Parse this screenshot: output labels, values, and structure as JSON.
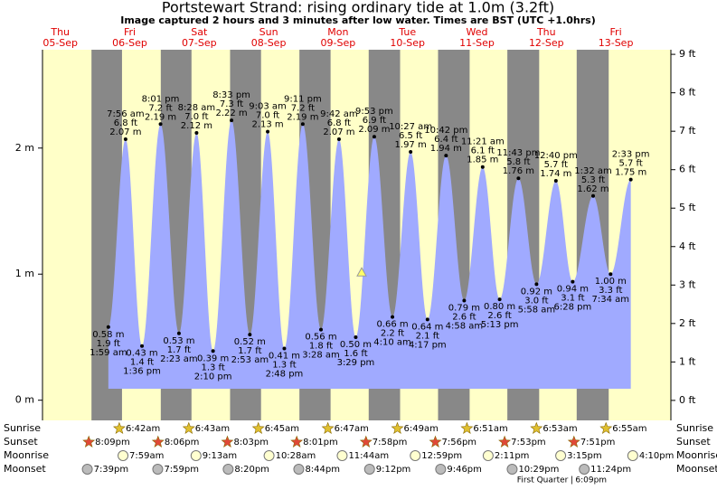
{
  "chart_data": {
    "type": "tide",
    "title": "Portstewart Strand: rising  ordinary tide at 1.0m (3.2ft)",
    "subtitle": "Image captured 2 hours and 3 minutes after low water. Times are BST (UTC +1.0hrs)",
    "ylim": [
      -0.16,
      2.78
    ],
    "yticks": [
      {
        "value": 0,
        "label": "0 m"
      },
      {
        "value": 1,
        "label": "1 m"
      },
      {
        "value": 2,
        "label": "2 m"
      }
    ],
    "y2lim": [
      -0.52,
      9.12
    ],
    "y2ticks": [
      {
        "value": 0,
        "label": "0 ft"
      },
      {
        "value": 1,
        "label": "1 ft"
      },
      {
        "value": 2,
        "label": "2 ft"
      },
      {
        "value": 3,
        "label": "3 ft"
      },
      {
        "value": 4,
        "label": "4 ft"
      },
      {
        "value": 5,
        "label": "5 ft"
      },
      {
        "value": 6,
        "label": "6 ft"
      },
      {
        "value": 7,
        "label": "7 ft"
      },
      {
        "value": 8,
        "label": "8 ft"
      },
      {
        "value": 9,
        "label": "9 ft"
      }
    ],
    "current_level_m": 1.0,
    "row_labels": [
      "Sunrise",
      "Sunset",
      "Moonrise",
      "Moonset"
    ],
    "days": [
      {
        "name": "Thu",
        "date": "05-Sep",
        "sunset": "8:09pm",
        "moonset": "7:39pm",
        "tides": []
      },
      {
        "name": "Fri",
        "date": "06-Sep",
        "sunrise": "6:42am",
        "sunset": "8:06pm",
        "moonrise": "7:59am",
        "moonset": "7:59pm",
        "tides": [
          {
            "time": "1:59 am",
            "m": 0.58,
            "m_label": "0.58 m",
            "ft_label": "1.9 ft"
          },
          {
            "time": "7:56 am",
            "m": 2.07,
            "m_label": "2.07 m",
            "ft_label": "6.8 ft"
          },
          {
            "time": "1:36 pm",
            "m": 0.43,
            "m_label": "0.43 m",
            "ft_label": "1.4 ft"
          },
          {
            "time": "8:01 pm",
            "m": 2.19,
            "m_label": "2.19 m",
            "ft_label": "7.2 ft"
          }
        ]
      },
      {
        "name": "Sat",
        "date": "07-Sep",
        "sunrise": "6:43am",
        "sunset": "8:03pm",
        "moonrise": "9:13am",
        "moonset": "8:20pm",
        "tides": [
          {
            "time": "2:23 am",
            "m": 0.53,
            "m_label": "0.53 m",
            "ft_label": "1.7 ft"
          },
          {
            "time": "8:28 am",
            "m": 2.12,
            "m_label": "2.12 m",
            "ft_label": "7.0 ft"
          },
          {
            "time": "2:10 pm",
            "m": 0.39,
            "m_label": "0.39 m",
            "ft_label": "1.3 ft"
          },
          {
            "time": "8:33 pm",
            "m": 2.22,
            "m_label": "2.22 m",
            "ft_label": "7.3 ft"
          }
        ]
      },
      {
        "name": "Sun",
        "date": "08-Sep",
        "sunrise": "6:45am",
        "sunset": "8:01pm",
        "moonrise": "10:28am",
        "moonset": "8:44pm",
        "tides": [
          {
            "time": "2:53 am",
            "m": 0.52,
            "m_label": "0.52 m",
            "ft_label": "1.7 ft"
          },
          {
            "time": "9:03 am",
            "m": 2.13,
            "m_label": "2.13 m",
            "ft_label": "7.0 ft"
          },
          {
            "time": "2:48 pm",
            "m": 0.41,
            "m_label": "0.41 m",
            "ft_label": "1.3 ft"
          },
          {
            "time": "9:11 pm",
            "m": 2.19,
            "m_label": "2.19 m",
            "ft_label": "7.2 ft"
          }
        ]
      },
      {
        "name": "Mon",
        "date": "09-Sep",
        "sunrise": "6:47am",
        "sunset": "7:58pm",
        "moonrise": "11:44am",
        "moonset": "9:12pm",
        "tides": [
          {
            "time": "3:28 am",
            "m": 0.56,
            "m_label": "0.56 m",
            "ft_label": "1.8 ft"
          },
          {
            "time": "9:42 am",
            "m": 2.07,
            "m_label": "2.07 m",
            "ft_label": "6.8 ft"
          },
          {
            "time": "3:29 pm",
            "m": 0.5,
            "m_label": "0.50 m",
            "ft_label": "1.6 ft"
          },
          {
            "time": "9:53 pm",
            "m": 2.09,
            "m_label": "2.09 m",
            "ft_label": "6.9 ft"
          }
        ]
      },
      {
        "name": "Tue",
        "date": "10-Sep",
        "sunrise": "6:49am",
        "sunset": "7:56pm",
        "moonrise": "12:59pm",
        "moonset": "9:46pm",
        "tides": [
          {
            "time": "4:10 am",
            "m": 0.66,
            "m_label": "0.66 m",
            "ft_label": "2.2 ft"
          },
          {
            "time": "10:27 am",
            "m": 1.97,
            "m_label": "1.97 m",
            "ft_label": "6.5 ft"
          },
          {
            "time": "4:17 pm",
            "m": 0.64,
            "m_label": "0.64 m",
            "ft_label": "2.1 ft"
          },
          {
            "time": "10:42 pm",
            "m": 1.94,
            "m_label": "1.94 m",
            "ft_label": "6.4 ft"
          }
        ]
      },
      {
        "name": "Wed",
        "date": "11-Sep",
        "sunrise": "6:51am",
        "sunset": "7:53pm",
        "moonrise": "2:11pm",
        "moonset": "10:29pm",
        "tides": [
          {
            "time": "4:58 am",
            "m": 0.79,
            "m_label": "0.79 m",
            "ft_label": "2.6 ft"
          },
          {
            "time": "11:21 am",
            "m": 1.85,
            "m_label": "1.85 m",
            "ft_label": "6.1 ft"
          },
          {
            "time": "5:13 pm",
            "m": 0.8,
            "m_label": "0.80 m",
            "ft_label": "2.6 ft"
          },
          {
            "time": "11:43 pm",
            "m": 1.76,
            "m_label": "1.76 m",
            "ft_label": "5.8 ft"
          }
        ]
      },
      {
        "name": "Thu",
        "date": "12-Sep",
        "sunrise": "6:53am",
        "sunset": "7:51pm",
        "moonrise": "3:15pm",
        "moonset": "11:24pm",
        "moon_phase": "First Quarter",
        "moon_phase_time": "6:09pm",
        "tides": [
          {
            "time": "5:58 am",
            "m": 0.92,
            "m_label": "0.92 m",
            "ft_label": "3.0 ft"
          },
          {
            "time": "12:40 pm",
            "m": 1.74,
            "m_label": "1.74 m",
            "ft_label": "5.7 ft"
          },
          {
            "time": "6:28 pm",
            "m": 0.94,
            "m_label": "0.94 m",
            "ft_label": "3.1 ft"
          }
        ]
      },
      {
        "name": "Fri",
        "date": "13-Sep",
        "sunrise": "6:55am",
        "moonrise": "4:10pm",
        "tides": [
          {
            "time": "1:32 am",
            "m": 1.62,
            "m_label": "1.62 m",
            "ft_label": "5.3 ft"
          },
          {
            "time": "7:34 am",
            "m": 1.0,
            "m_label": "1.00 m",
            "ft_label": "3.3 ft"
          },
          {
            "time": "2:33 pm",
            "m": 1.75,
            "m_label": "1.75 m",
            "ft_label": "5.7 ft"
          }
        ]
      }
    ]
  }
}
